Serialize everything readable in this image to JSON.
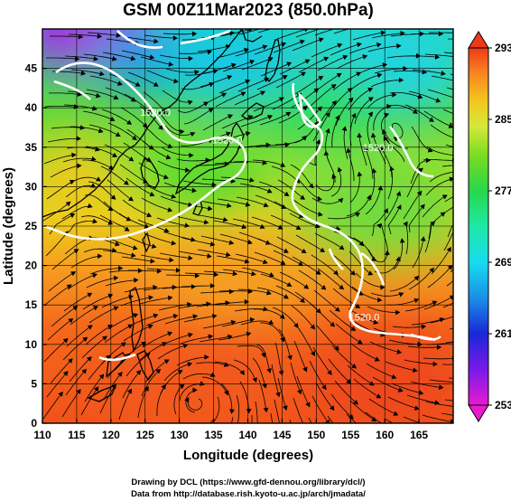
{
  "title": "GSM 00Z11Mar2023 (850.0hPa)",
  "map": {
    "xlabel": "Longitude (degrees)",
    "ylabel": "Latitude  (degrees)",
    "xticks": [
      "110",
      "115",
      "120",
      "125",
      "130",
      "135",
      "140",
      "145",
      "150",
      "155",
      "160",
      "165"
    ],
    "yticks": [
      "0",
      "5",
      "10",
      "15",
      "20",
      "25",
      "30",
      "35",
      "40",
      "45"
    ],
    "xlim": [
      110,
      170
    ],
    "ylim": [
      0,
      50
    ],
    "grid": true,
    "contour_labels": [
      {
        "text": "1520.0",
        "lon": 126.5,
        "lat": 39.0
      },
      {
        "text": "1520.0",
        "lon": 137.0,
        "lat": 35.5
      },
      {
        "text": "1520.0",
        "lon": 159.0,
        "lat": 34.5
      },
      {
        "text": "1520.0",
        "lon": 157.0,
        "lat": 13.0
      }
    ]
  },
  "colorbar": {
    "ticks": [
      "293",
      "285",
      "277",
      "269",
      "261",
      "253"
    ],
    "vmin": 253,
    "vmax": 293,
    "colors": [
      "#e81ad0",
      "#7a1ae8",
      "#1a28d6",
      "#1a8fe8",
      "#17dcef",
      "#1fe8a8",
      "#27d84a",
      "#7adc22",
      "#d4e83a",
      "#f4c71e",
      "#f98520",
      "#ee3a1a"
    ]
  },
  "credits": {
    "line1": "Drawing by DCL (https://www.gfd-dennou.org/library/dcl/)",
    "line2": "Data from http://database.rish.kyoto-u.ac.jp/arch/jmadata/"
  }
}
